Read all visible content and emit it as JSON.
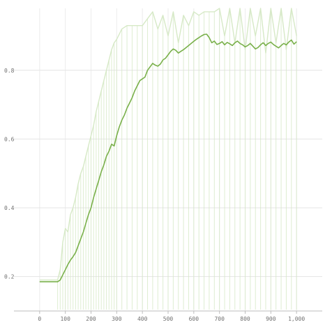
{
  "chart_data": {
    "type": "line",
    "title": "",
    "xlabel": "",
    "ylabel": "",
    "grid": true,
    "xlim": [
      -100,
      1100
    ],
    "ylim": [
      0.1,
      0.98
    ],
    "x_ticks": [
      {
        "value": 0,
        "label": "0"
      },
      {
        "value": 100,
        "label": "100"
      },
      {
        "value": 200,
        "label": "200"
      },
      {
        "value": 300,
        "label": "300"
      },
      {
        "value": 400,
        "label": "400"
      },
      {
        "value": 500,
        "label": "500"
      },
      {
        "value": 600,
        "label": "600"
      },
      {
        "value": 700,
        "label": "700"
      },
      {
        "value": 800,
        "label": "800"
      },
      {
        "value": 900,
        "label": "900"
      },
      {
        "value": 1000,
        "label": "1,000"
      }
    ],
    "y_ticks": [
      {
        "value": 0.2,
        "label": "0.2"
      },
      {
        "value": 0.4,
        "label": "0.4"
      },
      {
        "value": 0.6,
        "label": "0.6"
      },
      {
        "value": 0.8,
        "label": "0.8"
      }
    ],
    "series": [
      {
        "role": "raw",
        "color": "#d6e9c6",
        "x": [
          0,
          60,
          70,
          80,
          90,
          100,
          110,
          120,
          130,
          140,
          150,
          160,
          170,
          180,
          190,
          200,
          210,
          220,
          230,
          240,
          250,
          260,
          270,
          280,
          290,
          300,
          320,
          340,
          360,
          380,
          400,
          420,
          440,
          460,
          480,
          500,
          520,
          540,
          560,
          580,
          600,
          620,
          640,
          660,
          680,
          700,
          720,
          740,
          760,
          780,
          800,
          820,
          840,
          860,
          880,
          900,
          920,
          940,
          960,
          980,
          1000
        ],
        "y": [
          0.19,
          0.19,
          0.19,
          0.22,
          0.3,
          0.34,
          0.33,
          0.38,
          0.4,
          0.43,
          0.47,
          0.5,
          0.52,
          0.55,
          0.58,
          0.61,
          0.64,
          0.68,
          0.71,
          0.74,
          0.77,
          0.8,
          0.83,
          0.86,
          0.88,
          0.89,
          0.92,
          0.93,
          0.93,
          0.93,
          0.93,
          0.95,
          0.97,
          0.92,
          0.96,
          0.9,
          0.97,
          0.88,
          0.96,
          0.93,
          0.97,
          0.96,
          0.97,
          0.97,
          0.97,
          0.98,
          0.9,
          0.98,
          0.88,
          0.98,
          0.86,
          0.98,
          0.9,
          0.98,
          0.85,
          0.98,
          0.88,
          0.98,
          0.86,
          0.98,
          0.9
        ]
      },
      {
        "role": "smoothed",
        "color": "#79b04a",
        "x": [
          0,
          20,
          40,
          60,
          70,
          80,
          90,
          100,
          110,
          120,
          130,
          140,
          150,
          160,
          170,
          180,
          190,
          200,
          210,
          220,
          230,
          240,
          250,
          260,
          270,
          280,
          290,
          300,
          310,
          320,
          330,
          340,
          350,
          360,
          370,
          380,
          390,
          400,
          410,
          420,
          430,
          440,
          450,
          460,
          470,
          480,
          490,
          500,
          510,
          520,
          530,
          540,
          550,
          560,
          570,
          580,
          590,
          600,
          610,
          620,
          630,
          640,
          650,
          660,
          670,
          680,
          690,
          700,
          710,
          720,
          730,
          740,
          750,
          760,
          770,
          780,
          790,
          800,
          810,
          820,
          830,
          840,
          850,
          860,
          870,
          880,
          890,
          900,
          910,
          920,
          930,
          940,
          950,
          960,
          970,
          980,
          990,
          1000
        ],
        "y": [
          0.185,
          0.185,
          0.185,
          0.185,
          0.185,
          0.19,
          0.205,
          0.22,
          0.235,
          0.248,
          0.258,
          0.27,
          0.29,
          0.31,
          0.33,
          0.355,
          0.38,
          0.4,
          0.43,
          0.455,
          0.48,
          0.505,
          0.525,
          0.55,
          0.565,
          0.585,
          0.58,
          0.61,
          0.635,
          0.655,
          0.67,
          0.69,
          0.705,
          0.72,
          0.74,
          0.755,
          0.77,
          0.775,
          0.78,
          0.8,
          0.81,
          0.82,
          0.815,
          0.812,
          0.818,
          0.83,
          0.835,
          0.845,
          0.855,
          0.862,
          0.858,
          0.85,
          0.855,
          0.86,
          0.866,
          0.872,
          0.878,
          0.884,
          0.89,
          0.895,
          0.9,
          0.904,
          0.905,
          0.895,
          0.88,
          0.885,
          0.875,
          0.878,
          0.883,
          0.874,
          0.881,
          0.877,
          0.872,
          0.88,
          0.885,
          0.878,
          0.874,
          0.868,
          0.872,
          0.878,
          0.87,
          0.862,
          0.866,
          0.874,
          0.88,
          0.872,
          0.878,
          0.882,
          0.875,
          0.87,
          0.865,
          0.872,
          0.878,
          0.874,
          0.882,
          0.888,
          0.876,
          0.883
        ]
      }
    ]
  }
}
